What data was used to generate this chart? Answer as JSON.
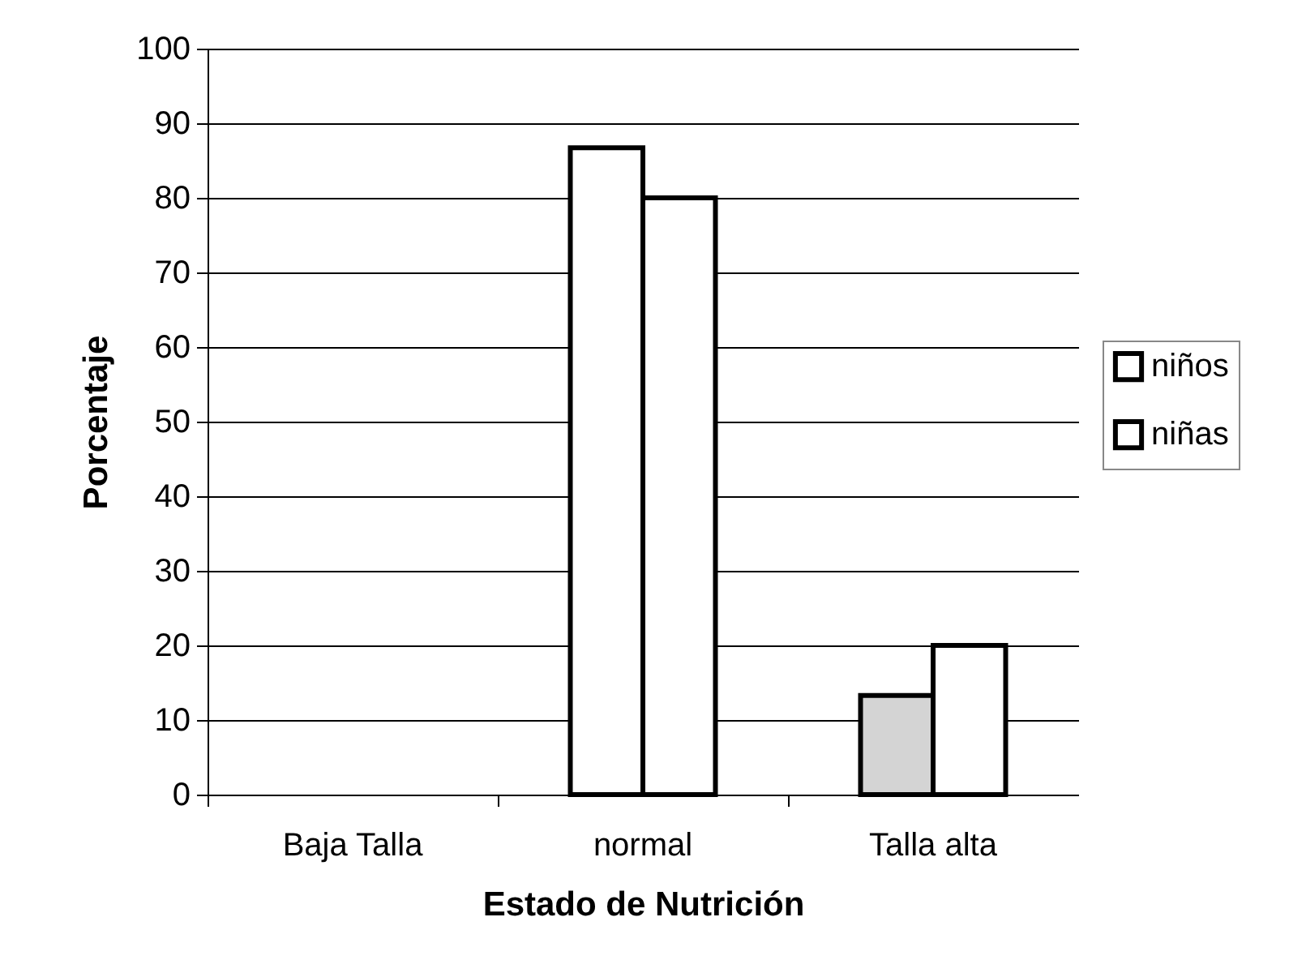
{
  "chart_data": {
    "type": "bar",
    "xlabel": "Estado de Nutrición",
    "ylabel": "Porcentaje",
    "categories": [
      "Baja Talla",
      "normal",
      "Talla alta"
    ],
    "series": [
      {
        "name": "niños",
        "color": "#ffffff",
        "colors": [
          "#ffffff",
          "#ffffff",
          "#d4d4d4"
        ],
        "values": [
          0,
          86.7,
          13.3
        ]
      },
      {
        "name": "niñas",
        "color": "#ffffff",
        "values": [
          0,
          80,
          20
        ]
      }
    ],
    "ylim": [
      0,
      100
    ],
    "yticks": [
      0,
      10,
      20,
      30,
      40,
      50,
      60,
      70,
      80,
      90,
      100
    ],
    "grid": "y",
    "legend": "right"
  }
}
